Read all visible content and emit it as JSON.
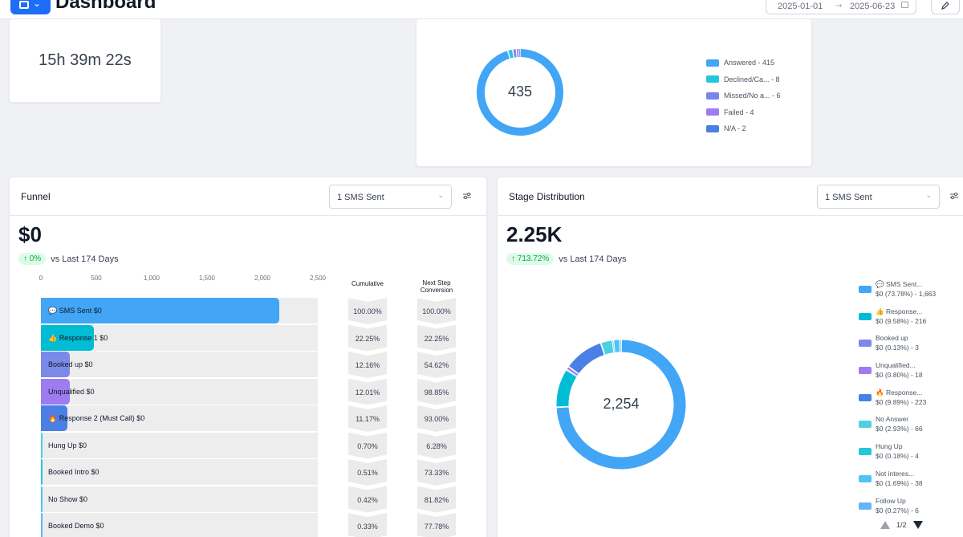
{
  "header": {
    "title": "Dashboard",
    "date_start": "2025-01-01",
    "date_arrow": "→",
    "date_end": "2025-06-23"
  },
  "duration_card": {
    "value": "15h 39m 22s"
  },
  "calls_card": {
    "total": "435",
    "legend": [
      {
        "label": "Answered - 415",
        "value": 415,
        "color": "#42a5f5"
      },
      {
        "label": "Declined/Ca... - 8",
        "value": 8,
        "color": "#26c6da"
      },
      {
        "label": "Missed/No a... - 6",
        "value": 6,
        "color": "#7986e8"
      },
      {
        "label": "Failed - 4",
        "value": 4,
        "color": "#9c7cf0"
      },
      {
        "label": "N/A - 2",
        "value": 2,
        "color": "#4a7fe5"
      }
    ]
  },
  "funnel": {
    "title": "Funnel",
    "select_value": "1 SMS Sent",
    "value": "$0",
    "delta": "↑ 0%",
    "delta_text": "vs Last 174 Days",
    "axis_ticks": [
      "0",
      "500",
      "1,000",
      "1,500",
      "2,000",
      "2,500"
    ],
    "axis_max": 2500,
    "col_cumulative": "Cumulative",
    "col_next_1": "Next Step",
    "col_next_2": "Conversion",
    "rows": [
      {
        "label": "💬 SMS Sent   $0",
        "value": 2150,
        "color": "#42a5f5",
        "cumulative": "100.00%",
        "next": "100.00%"
      },
      {
        "label": "👍 Response 1   $0",
        "value": 478,
        "color": "#00bcd4",
        "cumulative": "22.25%",
        "next": "22.25%"
      },
      {
        "label": "Booked up   $0",
        "value": 261,
        "color": "#7b8ae8",
        "cumulative": "12.16%",
        "next": "54.62%"
      },
      {
        "label": "Unqualified   $0",
        "value": 258,
        "color": "#9c7cf0",
        "cumulative": "12.01%",
        "next": "98.85%"
      },
      {
        "label": "🔥 Response 2 (Must Call)   $0",
        "value": 240,
        "color": "#4a7fe5",
        "cumulative": "11.17%",
        "next": "93.00%"
      },
      {
        "label": "Hung Up   $0",
        "value": 15,
        "color": "#4dd0e1",
        "cumulative": "0.70%",
        "next": "6.28%"
      },
      {
        "label": "Booked Intro   $0",
        "value": 11,
        "color": "#26c6da",
        "cumulative": "0.51%",
        "next": "73.33%"
      },
      {
        "label": "No Show   $0",
        "value": 9,
        "color": "#4fc3f7",
        "cumulative": "0.42%",
        "next": "81.82%"
      },
      {
        "label": "Booked Demo   $0",
        "value": 7,
        "color": "#64b5f6",
        "cumulative": "0.33%",
        "next": "77.78%"
      }
    ]
  },
  "stage": {
    "title": "Stage Distribution",
    "select_value": "1 SMS Sent",
    "value": "2.25K",
    "delta": "↑ 713.72%",
    "delta_text": "vs Last 174 Days",
    "total": "2,254",
    "legend": [
      {
        "line1": "💬 SMS Sent...",
        "line2": "$0 (73.78%) - 1,663",
        "value": 1663,
        "color": "#42a5f5"
      },
      {
        "line1": "👍 Response...",
        "line2": "$0 (9.58%) - 216",
        "value": 216,
        "color": "#00bcd4"
      },
      {
        "line1": "Booked up",
        "line2": "$0 (0.13%) - 3",
        "value": 3,
        "color": "#7b8ae8"
      },
      {
        "line1": "Unqualified...",
        "line2": "$0 (0.80%) - 18",
        "value": 18,
        "color": "#9c7cf0"
      },
      {
        "line1": "🔥 Response...",
        "line2": "$0 (9.89%) - 223",
        "value": 223,
        "color": "#4a7fe5"
      },
      {
        "line1": "No Answer",
        "line2": "$0 (2.93%) - 66",
        "value": 66,
        "color": "#4dd0e1"
      },
      {
        "line1": "Hung Up",
        "line2": "$0 (0.18%) - 4",
        "value": 4,
        "color": "#26c6da"
      },
      {
        "line1": "Not interes...",
        "line2": "$0 (1.69%) - 38",
        "value": 38,
        "color": "#4fc3f7"
      },
      {
        "line1": "Follow Up",
        "line2": "$0 (0.27%) - 6",
        "value": 6,
        "color": "#64b5f6"
      }
    ],
    "page": "1/2"
  }
}
